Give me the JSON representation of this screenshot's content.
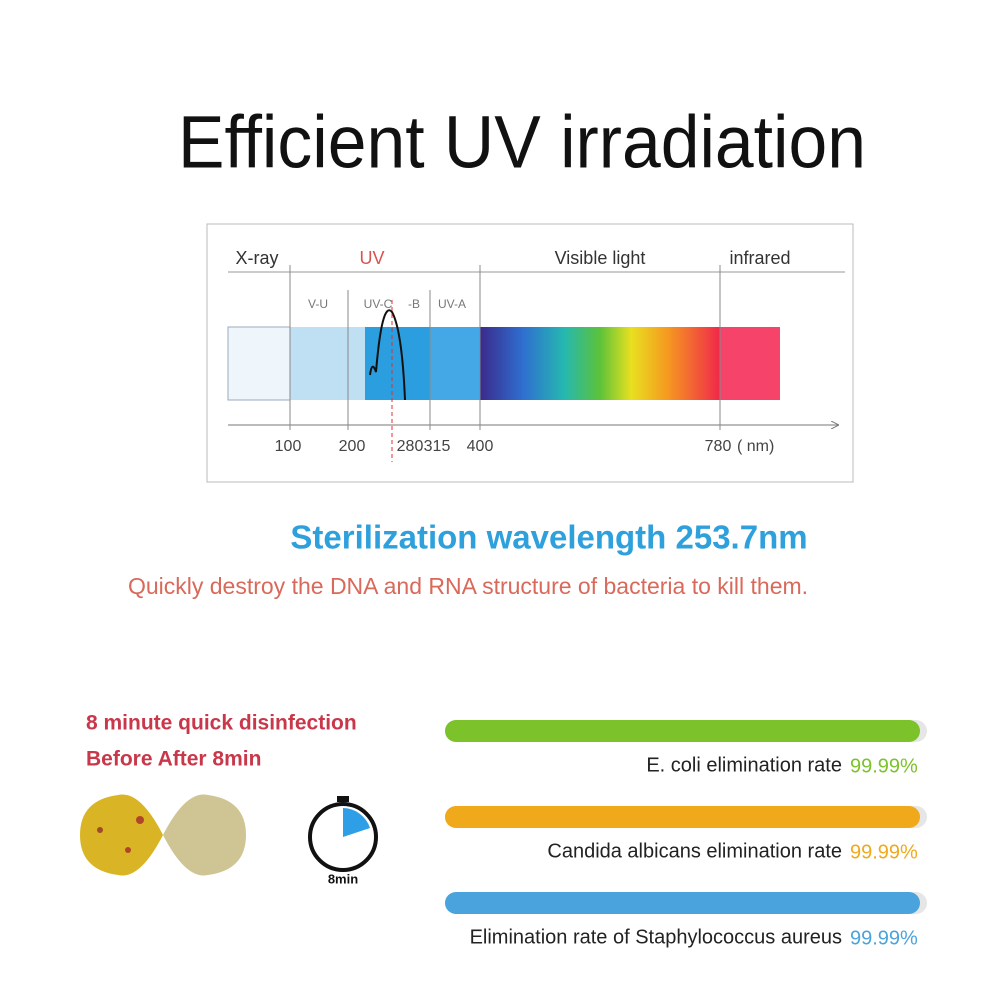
{
  "title": "Efficient UV irradiation",
  "spectrum": {
    "regions": [
      "X-ray",
      "UV",
      "Visible light",
      "infrared"
    ],
    "uv_bands": [
      "V-U",
      "UV-C",
      "-B",
      "UV-A"
    ],
    "ticks": [
      100,
      200,
      280,
      315,
      400,
      780
    ],
    "unit": "( nm)"
  },
  "subtitle": "Sterilization wavelength 253.7nm",
  "description": "Quickly destroy the DNA and RNA structure of bacteria to kill them.",
  "disinfection": {
    "heading": "8 minute quick disinfection",
    "subheading": "Before After 8min",
    "timer_label": "8min"
  },
  "rates": [
    {
      "label": "E. coli elimination rate",
      "value": "99.99%",
      "color": "#7cc22a"
    },
    {
      "label": "Candida albicans elimination rate",
      "value": "99.99%",
      "color": "#f0a91a"
    },
    {
      "label": "Elimination rate of Staphylococcus aureus",
      "value": "99.99%",
      "color": "#4aa3dc"
    }
  ]
}
